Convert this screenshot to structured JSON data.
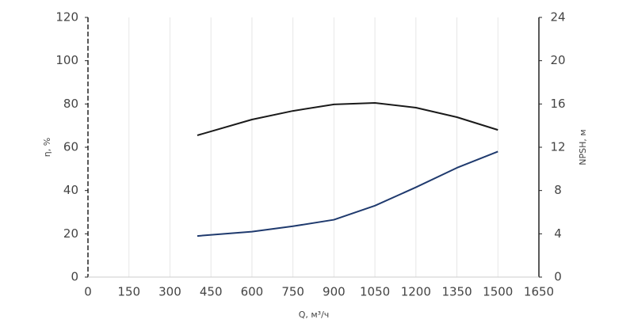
{
  "chart_data": {
    "type": "line",
    "x_label": "Q, м³/ч",
    "y_label": "η, %",
    "y2_label": "NPSH, м",
    "x": [
      400,
      600,
      750,
      900,
      1050,
      1200,
      1350,
      1500
    ],
    "series": [
      {
        "name": "η",
        "color": "#1a1a1a",
        "values": [
          65.5,
          72.8,
          76.8,
          79.8,
          80.5,
          78.3,
          73.9,
          68
        ]
      },
      {
        "name": "NPSH",
        "color": "#1f3a6e",
        "axis": "y2",
        "values": [
          3.8,
          4.2,
          4.7,
          5.3,
          6.6,
          8.3,
          10.1,
          11.6
        ]
      }
    ],
    "xlim": [
      0,
      1650
    ],
    "xticks": [
      0,
      150,
      300,
      450,
      600,
      750,
      900,
      1050,
      1200,
      1350,
      1500,
      1650
    ],
    "ylim": [
      0,
      120
    ],
    "yticks": [
      0,
      20,
      40,
      60,
      80,
      100,
      120
    ],
    "y2lim": [
      0,
      24
    ],
    "y2ticks": [
      0,
      4,
      8,
      12,
      16,
      20,
      24
    ],
    "grid": true
  }
}
